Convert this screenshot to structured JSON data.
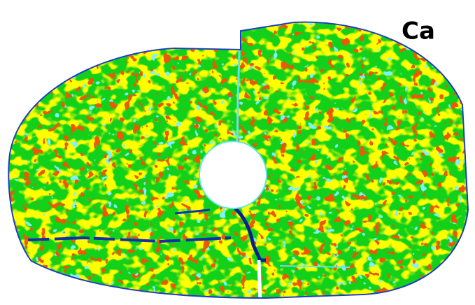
{
  "label": "Ca"
}
